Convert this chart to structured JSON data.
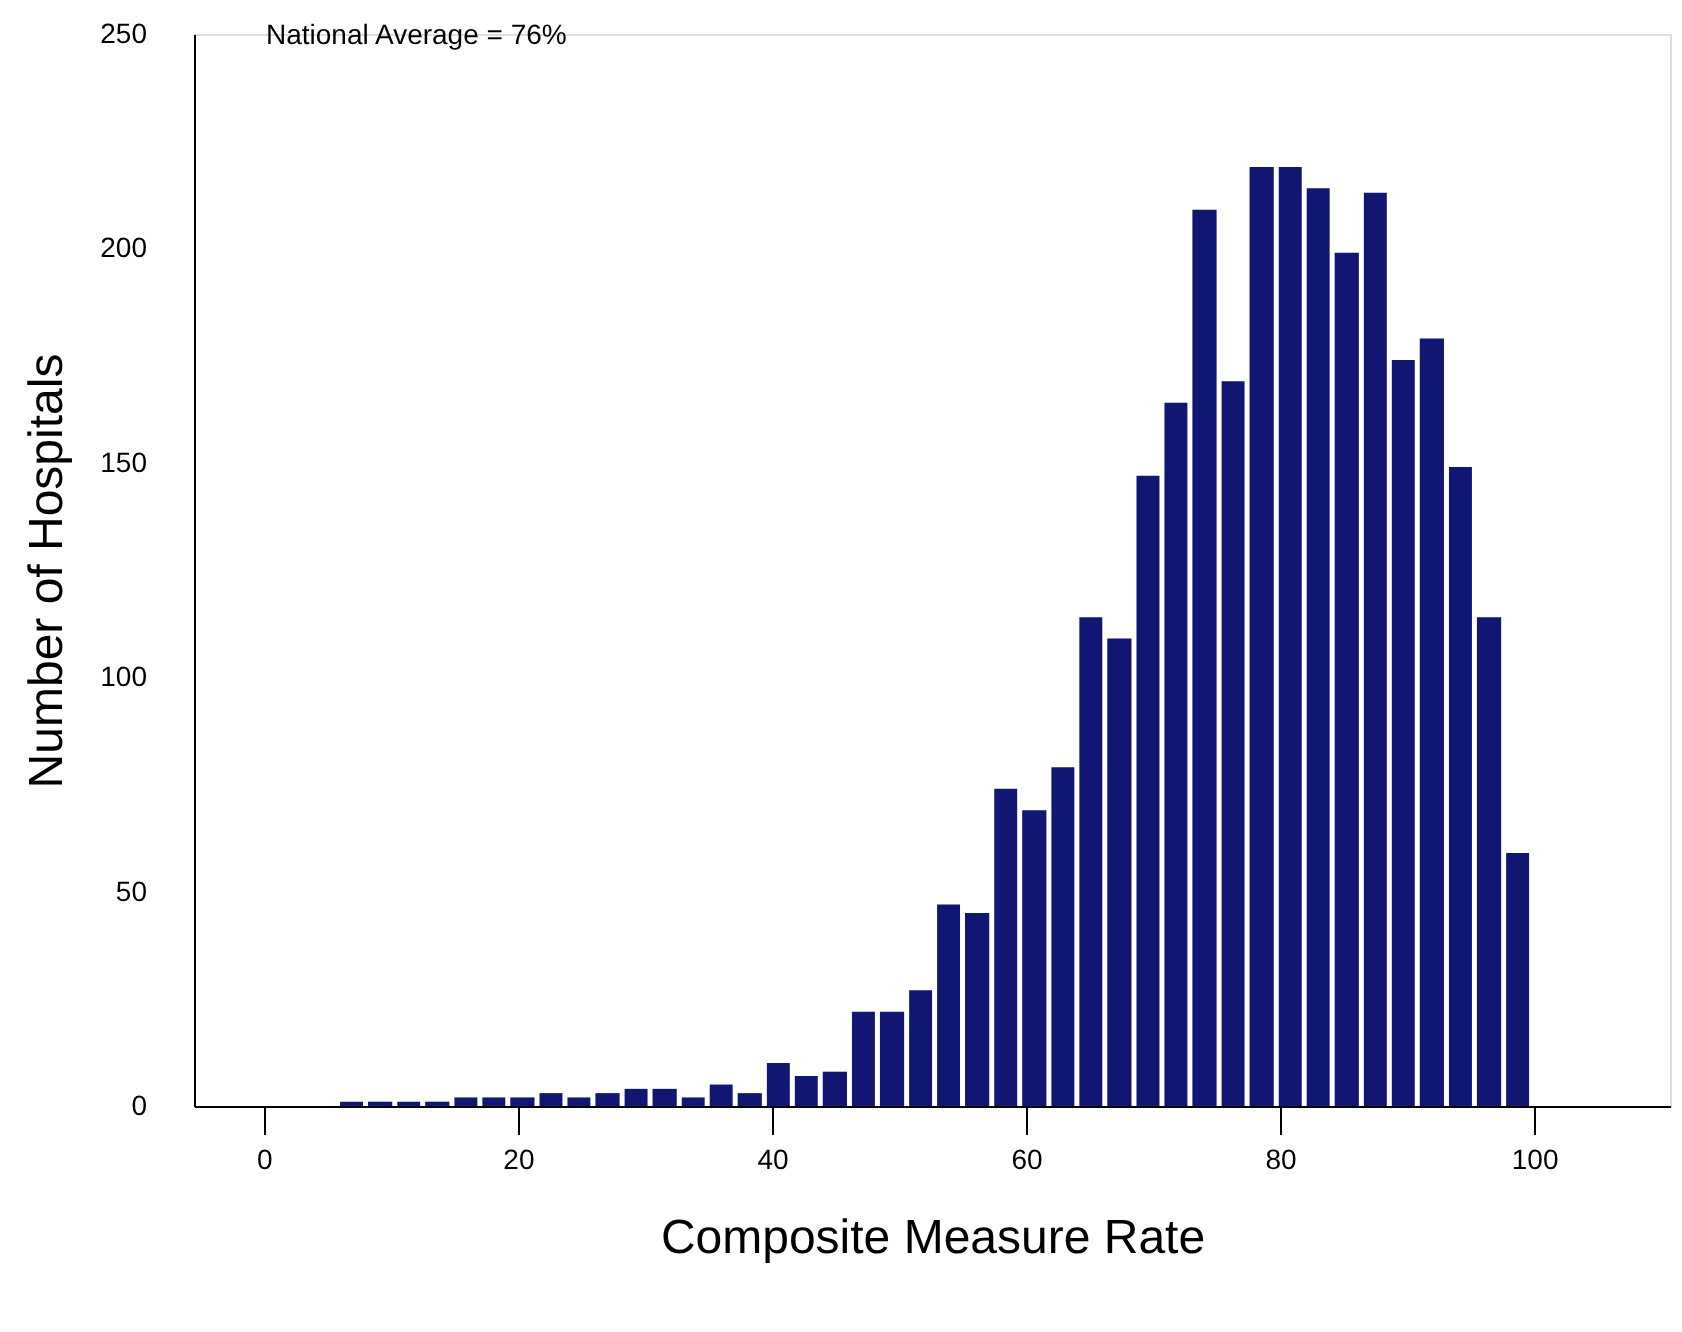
{
  "chart_data": {
    "type": "histogram",
    "xlabel": "Composite Measure Rate",
    "ylabel": "Number of Hospitals",
    "annotations": [
      "National Average = 76%"
    ],
    "bins": [
      6,
      8.2,
      10.5,
      12.7,
      15,
      17.2,
      19.4,
      21.7,
      23.9,
      26.1,
      28.4,
      30.6,
      32.9,
      35.1,
      37.3,
      39.6,
      41.8,
      44,
      46.3,
      48.5,
      50.8,
      53,
      55.2,
      57.5,
      59.7,
      62,
      64.2,
      66.4,
      68.7,
      70.9,
      73.1,
      75.4,
      77.6,
      79.9,
      82.1,
      84.3,
      86.6,
      88.8,
      91,
      93.3,
      95.5,
      97.8,
      100
    ],
    "values": [
      1,
      1,
      1,
      1,
      2,
      2,
      2,
      3,
      2,
      3,
      4,
      4,
      2,
      5,
      3,
      10,
      7,
      8,
      22,
      22,
      27,
      47,
      45,
      74,
      69,
      79,
      114,
      109,
      147,
      164,
      209,
      169,
      219,
      219,
      214,
      199,
      213,
      174,
      179,
      149,
      114,
      59
    ],
    "color": "#121673",
    "xlim": [
      -5.5,
      110.7
    ],
    "xticks": [
      0,
      20,
      40,
      60,
      80,
      100
    ],
    "ylim": [
      0,
      250
    ],
    "yticks": [
      0,
      50,
      100,
      150,
      200,
      250
    ],
    "grid": false
  }
}
